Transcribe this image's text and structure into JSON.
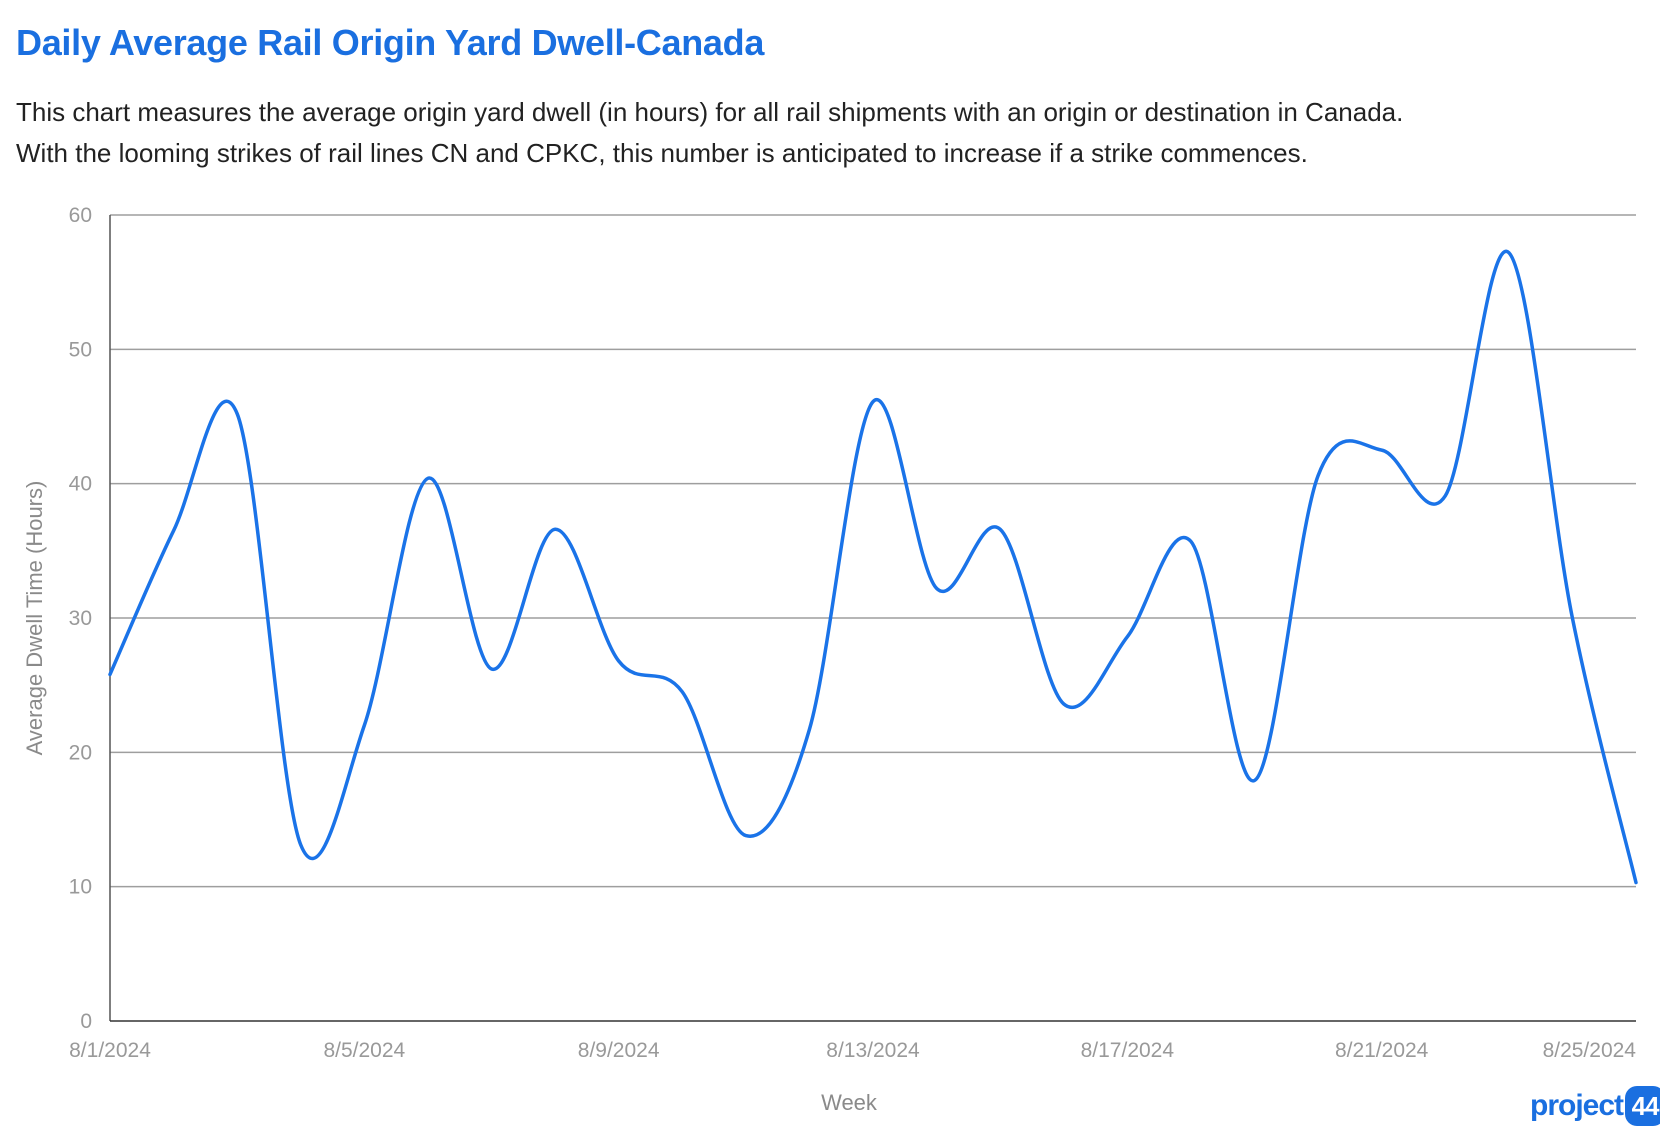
{
  "header": {
    "title": "Daily Average Rail Origin Yard Dwell-Canada",
    "description_line1": "This chart measures the average origin yard dwell (in hours) for all rail shipments with an origin or destination in Canada.",
    "description_line2": "With the looming strikes of rail lines CN and CPKC, this number is anticipated to increase if a strike commences."
  },
  "logo": {
    "text": "project",
    "badge": "44"
  },
  "colors": {
    "line": "#1a73e8",
    "grid": "#9e9e9e",
    "title": "#1a6fe0"
  },
  "chart_data": {
    "type": "line",
    "title": "Daily Average Rail Origin Yard Dwell-Canada",
    "xlabel": "Week",
    "ylabel": "Average Dwell Time (Hours)",
    "ylim": [
      0,
      60
    ],
    "yticks": [
      0,
      10,
      20,
      30,
      40,
      50,
      60
    ],
    "grid": true,
    "smooth": true,
    "x_tick_labels": [
      "8/1/2024",
      "8/5/2024",
      "8/9/2024",
      "8/13/2024",
      "8/17/2024",
      "8/21/2024",
      "8/25/2024"
    ],
    "x": [
      "8/1/2024",
      "8/2/2024",
      "8/3/2024",
      "8/4/2024",
      "8/5/2024",
      "8/6/2024",
      "8/7/2024",
      "8/8/2024",
      "8/9/2024",
      "8/10/2024",
      "8/11/2024",
      "8/12/2024",
      "8/13/2024",
      "8/14/2024",
      "8/15/2024",
      "8/16/2024",
      "8/17/2024",
      "8/18/2024",
      "8/19/2024",
      "8/20/2024",
      "8/21/2024",
      "8/22/2024",
      "8/23/2024",
      "8/24/2024",
      "8/25/2024"
    ],
    "series": [
      {
        "values": [
          25.8,
          36.5,
          45.2,
          13.1,
          22.0,
          40.4,
          26.2,
          36.6,
          26.8,
          24.5,
          13.8,
          21.7,
          46.1,
          32.2,
          36.6,
          23.6,
          28.6,
          35.7,
          17.9,
          40.6,
          42.5,
          39.1,
          57.2,
          30.0,
          10.3
        ]
      }
    ]
  }
}
